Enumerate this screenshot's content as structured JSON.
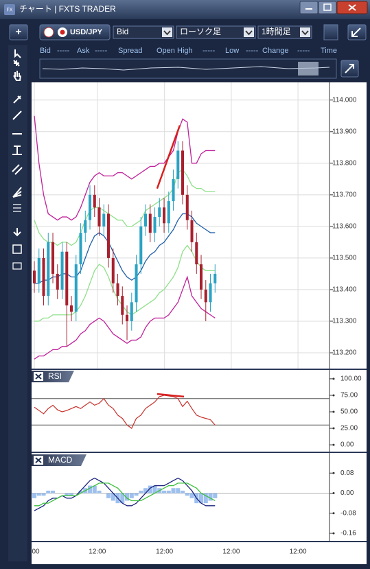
{
  "window": {
    "title": "チャート | FXTS TRADER",
    "icon": "FX"
  },
  "toolbar": {
    "add": "+",
    "symbol": "USD/JPY",
    "price_type": "Bid",
    "chart_style": "ローソク足",
    "timeframe": "1時間足"
  },
  "quote_bar": [
    "Bid",
    "-----",
    "Ask",
    "-----",
    "Spread",
    "Open",
    "High",
    "-----",
    "Low",
    "-----",
    "Change",
    "-----",
    "Time"
  ],
  "chart_data": [
    {
      "type": "candlestick",
      "grid": true,
      "xlim": [
        -0.3,
        63.7
      ],
      "ylim": [
        113.15,
        114.056
      ],
      "yticks": [
        {
          "value": 113.2,
          "label": "113.200"
        },
        {
          "value": 113.3,
          "label": "113.300"
        },
        {
          "value": 113.4,
          "label": "113.400"
        },
        {
          "value": 113.5,
          "label": "113.500"
        },
        {
          "value": 113.6,
          "label": "113.600"
        },
        {
          "value": 113.7,
          "label": "113.700"
        },
        {
          "value": 113.8,
          "label": "113.800"
        },
        {
          "value": 113.9,
          "label": "113.900"
        },
        {
          "value": 114,
          "label": "114.000"
        }
      ],
      "up_color": "#2aa3c4",
      "down_color": "#a8202e",
      "ohlc": {
        "open": [
          113.46,
          113.42,
          113.5,
          113.38,
          113.55,
          113.45,
          113.4,
          113.52,
          113.35,
          113.33,
          113.48,
          113.58,
          113.62,
          113.7,
          113.66,
          113.6,
          113.64,
          113.5,
          113.42,
          113.38,
          113.32,
          113.3,
          113.36,
          113.48,
          113.6,
          113.64,
          113.58,
          113.63,
          113.66,
          113.61,
          113.68,
          113.75,
          113.84,
          113.7,
          113.62,
          113.55,
          113.48,
          113.4,
          113.36,
          113.42
        ],
        "high": [
          113.49,
          113.53,
          113.53,
          113.58,
          113.58,
          113.48,
          113.55,
          113.55,
          113.38,
          113.51,
          113.61,
          113.65,
          113.73,
          113.73,
          113.69,
          113.67,
          113.67,
          113.53,
          113.45,
          113.41,
          113.35,
          113.39,
          113.51,
          113.63,
          113.67,
          113.67,
          113.66,
          113.69,
          113.69,
          113.71,
          113.78,
          113.87,
          113.87,
          113.73,
          113.65,
          113.58,
          113.51,
          113.43,
          113.45,
          113.48
        ],
        "low": [
          113.39,
          113.39,
          113.35,
          113.35,
          113.42,
          113.37,
          113.37,
          113.22,
          113.3,
          113.3,
          113.45,
          113.55,
          113.59,
          113.63,
          113.57,
          113.57,
          113.47,
          113.39,
          113.35,
          113.29,
          113.24,
          113.27,
          113.33,
          113.45,
          113.57,
          113.55,
          113.55,
          113.6,
          113.58,
          113.58,
          113.65,
          113.72,
          113.67,
          113.59,
          113.52,
          113.45,
          113.37,
          113.3,
          113.33,
          113.39
        ],
        "close": [
          113.42,
          113.5,
          113.38,
          113.55,
          113.45,
          113.4,
          113.52,
          113.35,
          113.33,
          113.48,
          113.58,
          113.62,
          113.7,
          113.66,
          113.6,
          113.64,
          113.5,
          113.42,
          113.38,
          113.32,
          113.3,
          113.36,
          113.48,
          113.6,
          113.64,
          113.58,
          113.63,
          113.66,
          113.61,
          113.68,
          113.75,
          113.84,
          113.7,
          113.62,
          113.55,
          113.48,
          113.4,
          113.36,
          113.42,
          113.45
        ]
      },
      "lines": [
        {
          "color": "#c0209a",
          "values": [
            113.95,
            113.8,
            113.7,
            113.64,
            113.63,
            113.62,
            113.63,
            113.63,
            113.62,
            113.63,
            113.66,
            113.7,
            113.74,
            113.76,
            113.77,
            113.76,
            113.76,
            113.76,
            113.77,
            113.77,
            113.76,
            113.75,
            113.76,
            113.77,
            113.78,
            113.79,
            113.79,
            113.8,
            113.8,
            113.82,
            113.84,
            113.9,
            113.94,
            113.93,
            113.8,
            113.8,
            113.83,
            113.84,
            113.84,
            113.84
          ]
        },
        {
          "color": "#8fe08a",
          "values": [
            113.62,
            113.58,
            113.56,
            113.55,
            113.55,
            113.54,
            113.55,
            113.55,
            113.54,
            113.55,
            113.58,
            113.62,
            113.65,
            113.66,
            113.66,
            113.65,
            113.64,
            113.63,
            113.62,
            113.62,
            113.6,
            113.6,
            113.61,
            113.62,
            113.65,
            113.66,
            113.67,
            113.68,
            113.69,
            113.7,
            113.72,
            113.77,
            113.78,
            113.76,
            113.73,
            113.72,
            113.72,
            113.71,
            113.71,
            113.71
          ]
        },
        {
          "color": "#1f5fa8",
          "values": [
            113.42,
            113.42,
            113.43,
            113.43,
            113.44,
            113.44,
            113.45,
            113.45,
            113.44,
            113.44,
            113.46,
            113.5,
            113.54,
            113.57,
            113.58,
            113.57,
            113.55,
            113.52,
            113.49,
            113.46,
            113.44,
            113.43,
            113.44,
            113.46,
            113.49,
            113.51,
            113.52,
            113.54,
            113.55,
            113.57,
            113.59,
            113.62,
            113.64,
            113.64,
            113.63,
            113.61,
            113.6,
            113.59,
            113.58,
            113.58
          ]
        },
        {
          "color": "#8fe08a",
          "values": [
            113.3,
            113.3,
            113.31,
            113.31,
            113.32,
            113.32,
            113.32,
            113.32,
            113.32,
            113.33,
            113.35,
            113.38,
            113.42,
            113.46,
            113.48,
            113.47,
            113.44,
            113.4,
            113.37,
            113.35,
            113.33,
            113.32,
            113.33,
            113.34,
            113.35,
            113.36,
            113.37,
            113.39,
            113.4,
            113.42,
            113.44,
            113.47,
            113.52,
            113.54,
            113.52,
            113.49,
            113.47,
            113.46,
            113.46,
            113.46
          ]
        },
        {
          "color": "#c0209a",
          "values": [
            113.18,
            113.19,
            113.19,
            113.2,
            113.21,
            113.21,
            113.22,
            113.22,
            113.23,
            113.24,
            113.26,
            113.27,
            113.29,
            113.3,
            113.31,
            113.3,
            113.28,
            113.26,
            113.25,
            113.24,
            113.23,
            113.24,
            113.24,
            113.25,
            113.28,
            113.3,
            113.31,
            113.31,
            113.31,
            113.32,
            113.34,
            113.36,
            113.4,
            113.44,
            113.38,
            113.36,
            113.34,
            113.33,
            113.32,
            113.31
          ]
        }
      ],
      "trend_line": {
        "color": "#d82020",
        "x": [
          26.5,
          31.4
        ],
        "y": [
          113.72,
          113.92
        ]
      }
    },
    {
      "type": "line",
      "title": "RSI",
      "xlim": [
        -0.3,
        63.7
      ],
      "ylim": [
        -10.3,
        113.4
      ],
      "yticks": [
        {
          "value": 0,
          "label": "0.00"
        },
        {
          "value": 25,
          "label": "25.00"
        },
        {
          "value": 50,
          "label": "50.00"
        },
        {
          "value": 75,
          "label": "75.00"
        },
        {
          "value": 100,
          "label": "100.00"
        }
      ],
      "levels": [
        70,
        30
      ],
      "series": [
        {
          "color": "#c8302a",
          "values": [
            57,
            52,
            47,
            55,
            60,
            53,
            50,
            52,
            55,
            58,
            55,
            60,
            65,
            60,
            63,
            70,
            60,
            55,
            45,
            40,
            30,
            25,
            40,
            45,
            55,
            60,
            65,
            73,
            75,
            74,
            73,
            70,
            58,
            66,
            55,
            45,
            42,
            40,
            38,
            30
          ]
        }
      ],
      "trend_line": {
        "color": "#d82020",
        "x": [
          26.5,
          32.3
        ],
        "y": [
          77,
          73
        ]
      }
    },
    {
      "type": "combo",
      "title": "MACD",
      "xlim": [
        -0.3,
        63.7
      ],
      "ylim": [
        -0.19,
        0.16
      ],
      "yticks": [
        -0.16,
        -0.08,
        {
          "value": 0,
          "label": "0.00"
        },
        0.08
      ],
      "levels": [
        0
      ],
      "xticks": [
        {
          "value": 0,
          "label": "00"
        },
        {
          "value": 13.6,
          "label": "12:00"
        },
        {
          "value": 28.1,
          "label": "12:00"
        },
        {
          "value": 42.5,
          "label": "12:00"
        },
        {
          "value": 56.9,
          "label": "12:00"
        }
      ],
      "series": [
        {
          "kind": "bar",
          "color": "#9ec0ee",
          "values": [
            -0.02,
            -0.01,
            -0.01,
            0.01,
            0.01,
            0.0,
            0.0,
            -0.01,
            -0.01,
            0.0,
            0.01,
            0.02,
            0.03,
            0.03,
            0.01,
            0.0,
            -0.02,
            -0.03,
            -0.04,
            -0.04,
            -0.03,
            -0.02,
            -0.01,
            0.01,
            0.02,
            0.03,
            0.03,
            0.02,
            0.01,
            0.01,
            0.02,
            0.02,
            0.01,
            -0.01,
            -0.02,
            -0.04,
            -0.04,
            -0.04,
            -0.03,
            -0.02
          ]
        },
        {
          "kind": "line",
          "color": "#1a237e",
          "values": [
            -0.07,
            -0.06,
            -0.05,
            -0.03,
            -0.02,
            -0.02,
            -0.01,
            -0.02,
            -0.02,
            -0.01,
            0.01,
            0.03,
            0.05,
            0.06,
            0.05,
            0.04,
            0.02,
            0.0,
            -0.02,
            -0.04,
            -0.05,
            -0.05,
            -0.04,
            -0.02,
            0.0,
            0.02,
            0.03,
            0.03,
            0.03,
            0.04,
            0.05,
            0.06,
            0.05,
            0.03,
            0.01,
            -0.02,
            -0.04,
            -0.05,
            -0.05,
            -0.05
          ]
        },
        {
          "kind": "line",
          "color": "#3cc03c",
          "values": [
            -0.05,
            -0.05,
            -0.04,
            -0.04,
            -0.03,
            -0.02,
            -0.01,
            -0.01,
            -0.01,
            -0.01,
            0.0,
            0.01,
            0.02,
            0.03,
            0.04,
            0.04,
            0.04,
            0.03,
            0.02,
            0.0,
            -0.02,
            -0.03,
            -0.03,
            -0.03,
            -0.02,
            -0.01,
            0.0,
            0.01,
            0.02,
            0.03,
            0.03,
            0.04,
            0.04,
            0.04,
            0.03,
            0.02,
            0.0,
            -0.01,
            -0.02,
            -0.03
          ]
        }
      ]
    }
  ]
}
